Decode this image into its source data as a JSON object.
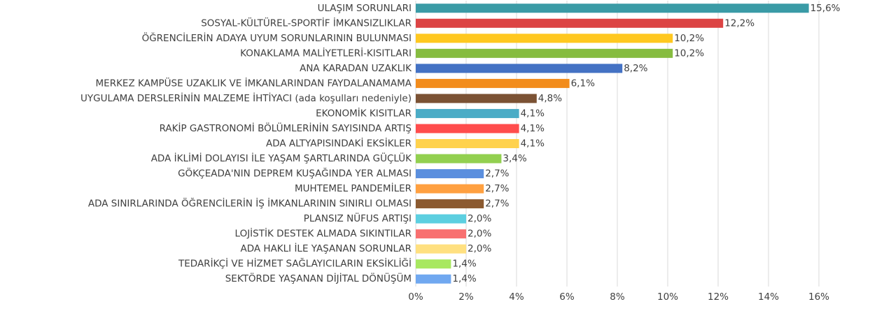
{
  "chart_data": {
    "type": "barh",
    "categories": [
      "ULAŞIM SORUNLARI",
      "SOSYAL-KÜLTÜREL-SPORTİF İMKANSIZLIKLAR",
      "ÖĞRENCİLERİN ADAYA UYUM SORUNLARININ BULUNMASI",
      "KONAKLAMA MALİYETLERİ-KISITLARI",
      "ANA KARADAN UZAKLIK",
      "MERKEZ KAMPÜSE UZAKLIK VE İMKANLARINDAN FAYDALANAMAMA",
      "UYGULAMA DERSLERİNİN MALZEME İHTİYACI (ada koşulları nedeniyle)",
      "EKONOMİK KISITLAR",
      "RAKİP GASTRONOMİ BÖLÜMLERİNİN SAYISINDA ARTIŞ",
      "ADA ALTYAPISINDAKİ EKSİKLER",
      "ADA İKLİMİ DOLAYISI İLE YAŞAM ŞARTLARINDA GÜÇLÜK",
      "GÖKÇEADA'NIN DEPREM KUŞAĞINDA YER ALMASI",
      "MUHTEMEL PANDEMİLER",
      "ADA SINIRLARINDA ÖĞRENCİLERİN İŞ İMKANLARININ SINIRLI OLMASI",
      "PLANSIZ NÜFUS ARTIŞI",
      "LOJİSTİK DESTEK ALMADA SIKINTILAR",
      "ADA HAKLI İLE YAŞANAN SORUNLAR",
      "TEDARİKÇİ VE HİZMET SAĞLAYICILARIN EKSİKLİĞİ",
      "SEKTÖRDE YAŞANAN DİJİTAL DÖNÜŞÜM"
    ],
    "values": [
      15.6,
      12.2,
      10.2,
      10.2,
      8.2,
      6.1,
      4.8,
      4.1,
      4.1,
      4.1,
      3.4,
      2.7,
      2.7,
      2.7,
      2.0,
      2.0,
      2.0,
      1.4,
      1.4
    ],
    "value_labels": [
      "15,6%",
      "12,2%",
      "10,2%",
      "10,2%",
      "8,2%",
      "6,1%",
      "4,8%",
      "4,1%",
      "4,1%",
      "4,1%",
      "3,4%",
      "2,7%",
      "2,7%",
      "2,7%",
      "2,0%",
      "2,0%",
      "2,0%",
      "1,4%",
      "1,4%"
    ],
    "colors": [
      "#3a9ba6",
      "#dc4444",
      "#ffc820",
      "#86bc40",
      "#4472c4",
      "#f28c1c",
      "#7b5234",
      "#4bacc6",
      "#ff4d4d",
      "#ffd24d",
      "#92d050",
      "#5b8fde",
      "#ffa040",
      "#8b5a30",
      "#5ccfe0",
      "#f87070",
      "#ffe080",
      "#a8e860",
      "#70a8f0"
    ],
    "xlim": [
      0,
      16
    ],
    "xticks": [
      {
        "value": 0,
        "label": "0%"
      },
      {
        "value": 2,
        "label": "2%"
      },
      {
        "value": 4,
        "label": "4%"
      },
      {
        "value": 6,
        "label": "6%"
      },
      {
        "value": 8,
        "label": "8%"
      },
      {
        "value": 10,
        "label": "10%"
      },
      {
        "value": 12,
        "label": "12%"
      },
      {
        "value": 14,
        "label": "14%"
      },
      {
        "value": 16,
        "label": "16%"
      }
    ],
    "grid": true
  }
}
